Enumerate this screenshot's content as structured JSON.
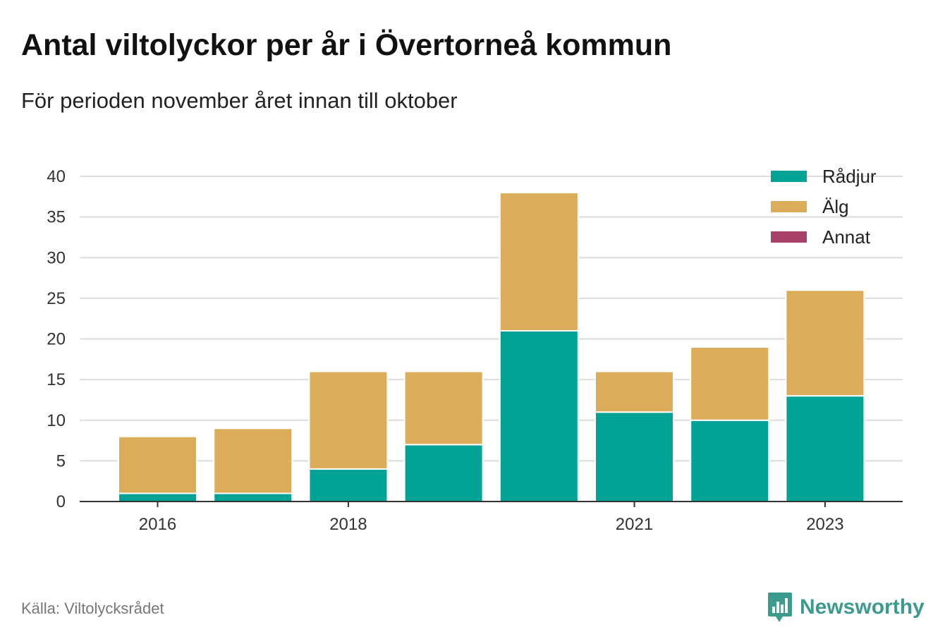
{
  "header": {
    "title": "Antal viltolyckor per år i Övertorneå kommun",
    "subtitle": "För perioden november året innan till oktober"
  },
  "footer": {
    "source": "Källa: Viltolycksrådet",
    "brand": "Newsworthy",
    "brand_icon": "bar-chart-speech-bubble-icon",
    "brand_color": "#3d9a8e"
  },
  "chart_data": {
    "type": "bar",
    "stacked": true,
    "categories": [
      "2016",
      "2017",
      "2018",
      "2019",
      "2020",
      "2021",
      "2022",
      "2023"
    ],
    "x_tick_labels": [
      "2016",
      "",
      "2018",
      "",
      "",
      "2021",
      "",
      "2023"
    ],
    "series": [
      {
        "name": "Rådjur",
        "color": "#00a396",
        "values": [
          1,
          1,
          4,
          7,
          21,
          11,
          10,
          13
        ]
      },
      {
        "name": "Älg",
        "color": "#dbad5a",
        "values": [
          7,
          8,
          12,
          9,
          17,
          5,
          9,
          13
        ]
      },
      {
        "name": "Annat",
        "color": "#a8426a",
        "values": [
          0,
          0,
          0,
          0,
          0,
          0,
          0,
          0
        ]
      }
    ],
    "ylim": [
      0,
      40
    ],
    "yticks": [
      0,
      5,
      10,
      15,
      20,
      25,
      30,
      35,
      40
    ],
    "grid": true,
    "legend_position": "top-right"
  }
}
